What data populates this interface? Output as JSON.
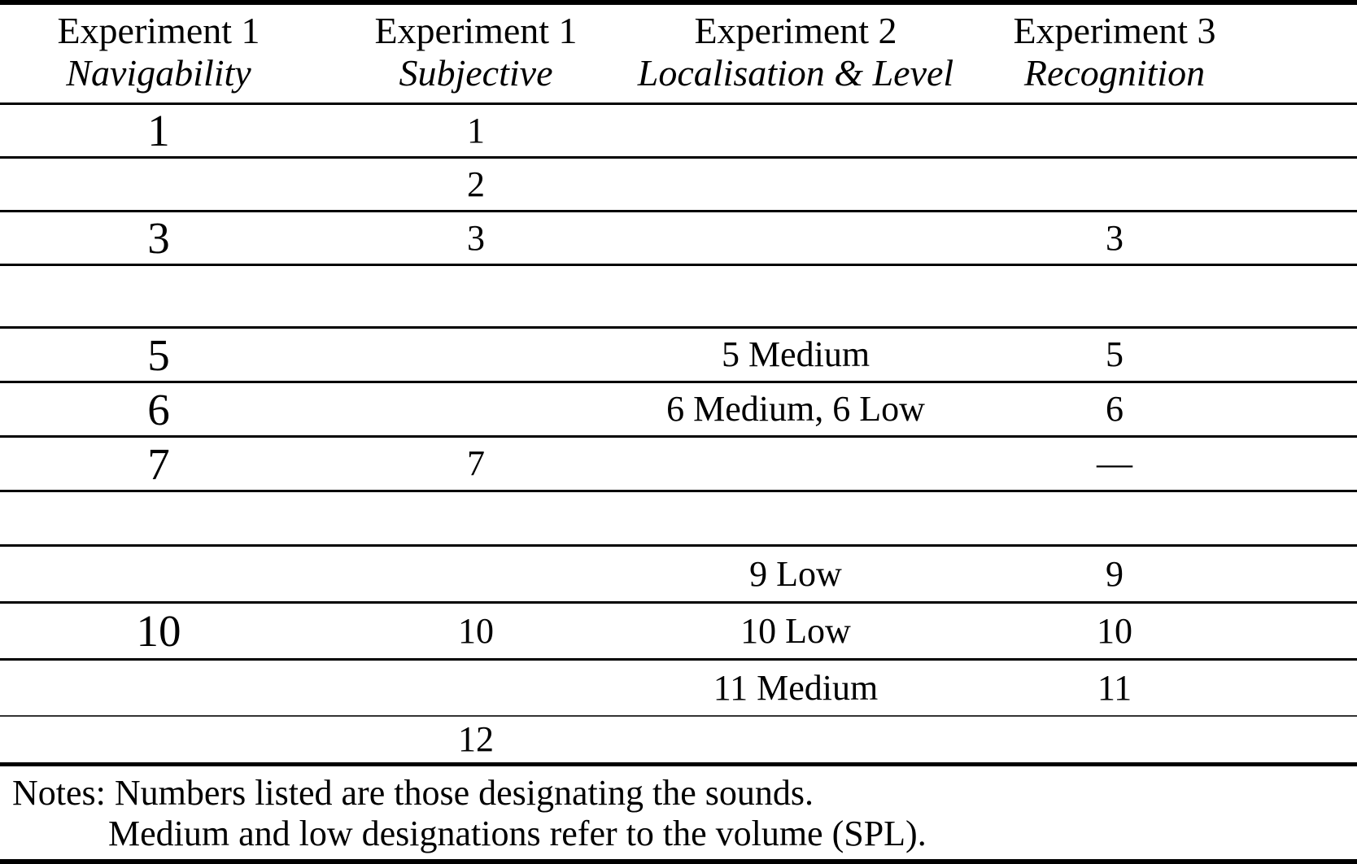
{
  "table": {
    "columns": [
      {
        "title": "Experiment 1",
        "subtitle": "Navigability"
      },
      {
        "title": "Experiment 1",
        "subtitle": "Subjective"
      },
      {
        "title": "Experiment 2",
        "subtitle": "Localisation & Level"
      },
      {
        "title": "Experiment 3",
        "subtitle": "Recognition"
      }
    ],
    "rows": [
      [
        "1",
        "1",
        "",
        ""
      ],
      [
        "",
        "2",
        "",
        ""
      ],
      [
        "3",
        "3",
        "",
        "3"
      ],
      [
        "",
        "",
        "",
        ""
      ],
      [
        "5",
        "",
        "5 Medium",
        "5"
      ],
      [
        "6",
        "",
        "6 Medium, 6 Low",
        "6"
      ],
      [
        "7",
        "7",
        "",
        "—"
      ],
      [
        "",
        "",
        "",
        ""
      ],
      [
        "",
        "",
        "9 Low",
        "9"
      ],
      [
        "10",
        "10",
        "10 Low",
        "10"
      ],
      [
        "",
        "",
        "11 Medium",
        "11"
      ],
      [
        "",
        "12",
        "",
        ""
      ]
    ],
    "notes": {
      "label": "Notes:",
      "lines": [
        "Numbers listed are those designating the sounds.",
        "Medium and low designations refer to the volume (SPL)."
      ]
    }
  },
  "colors": {
    "text": "#000000",
    "background": "#ffffff",
    "rule": "#000000",
    "thin_rule": "#333333"
  }
}
